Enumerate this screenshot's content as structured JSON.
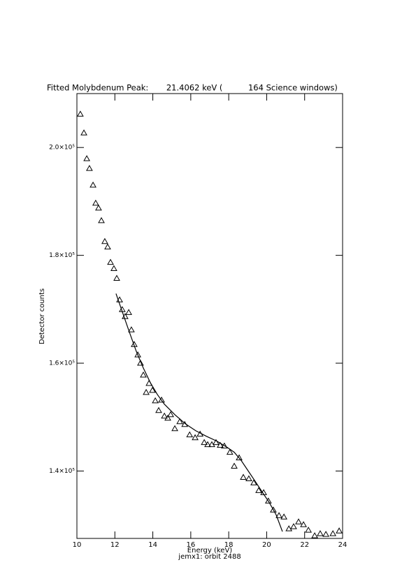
{
  "chart_data": {
    "type": "scatter",
    "title": "Fitted Molybdenum Peak:       21.4062 keV (          164 Science windows)",
    "x_label": "Energy (keV)",
    "subtitle": "jemx1: orbit 2488",
    "y_label": "Detector counts",
    "xlim": [
      10,
      24
    ],
    "ylim": [
      127500,
      210000
    ],
    "xticks": [
      10,
      12,
      14,
      16,
      18,
      20,
      22,
      24
    ],
    "yticks": [
      {
        "value": 140000,
        "label": "1.4×10⁵"
      },
      {
        "value": 160000,
        "label": "1.6×10⁵"
      },
      {
        "value": 180000,
        "label": "1.8×10⁵"
      },
      {
        "value": 200000,
        "label": "2.0×10⁵"
      }
    ],
    "color": "#000000",
    "series": [
      {
        "style": "triangle",
        "x": [
          10.18,
          10.37,
          10.52,
          10.66,
          10.85,
          10.99,
          11.14,
          11.29,
          11.47,
          11.62,
          11.77,
          11.95,
          12.1,
          12.25,
          12.39,
          12.54,
          12.73,
          12.87,
          13.02,
          13.21,
          13.35,
          13.5,
          13.65,
          13.8,
          13.98,
          14.13,
          14.31,
          14.46,
          14.61,
          14.79,
          14.94,
          15.16,
          15.42,
          15.68,
          15.94,
          16.23,
          16.49,
          16.71,
          16.89,
          17.11,
          17.33,
          17.55,
          17.77,
          18.06,
          18.29,
          18.55,
          18.77,
          19.06,
          19.32,
          19.58,
          19.84,
          20.09,
          20.35,
          20.65,
          20.91,
          21.17,
          21.42,
          21.68,
          21.94,
          22.2,
          22.53,
          22.82,
          23.12,
          23.49,
          23.82
        ],
        "values": [
          206190,
          202710,
          197940,
          196130,
          193030,
          189680,
          188770,
          186450,
          182580,
          181550,
          178710,
          177550,
          175740,
          171740,
          169940,
          168650,
          169420,
          166190,
          163480,
          161550,
          160000,
          157810,
          154580,
          156260,
          154970,
          153030,
          151230,
          153160,
          150190,
          149810,
          150450,
          147870,
          149160,
          148650,
          146710,
          146190,
          146840,
          145290,
          144900,
          144900,
          145290,
          144770,
          144650,
          143480,
          140900,
          142450,
          138840,
          138580,
          137810,
          136390,
          136000,
          134450,
          132770,
          131740,
          131480,
          129290,
          129680,
          130580,
          130060,
          129030,
          128000,
          128390,
          128260,
          128390,
          128900
        ]
      },
      {
        "style": "line",
        "x": [
          12.06,
          12.39,
          12.76,
          13.13,
          13.5,
          13.87,
          14.24,
          14.61,
          15.16,
          15.71,
          16.26,
          16.82,
          17.37,
          17.92,
          18.29,
          18.66,
          19.03,
          19.4,
          19.76,
          20.13,
          20.5,
          20.83
        ],
        "values": [
          172900,
          169550,
          165810,
          162190,
          159100,
          156390,
          154190,
          152390,
          150450,
          148770,
          147480,
          146450,
          145550,
          144390,
          143480,
          141940,
          140000,
          138060,
          136130,
          134190,
          131870,
          128770
        ]
      }
    ]
  }
}
